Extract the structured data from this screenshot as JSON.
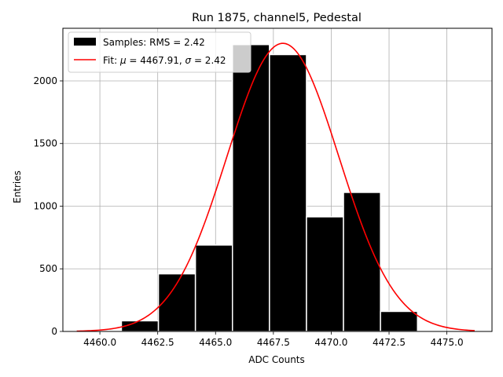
{
  "chart_data": {
    "type": "bar",
    "title": "Run 1875, channel5, Pedestal",
    "xlabel": "ADC Counts",
    "ylabel": "Entries",
    "xlim": [
      4458.4,
      4476.95
    ],
    "ylim": [
      0,
      2420
    ],
    "grid": true,
    "legend_placement": "top-left",
    "x_ticks": [
      4460.0,
      4462.5,
      4465.0,
      4467.5,
      4470.0,
      4472.5,
      4475.0
    ],
    "x_tick_labels": [
      "4460.0",
      "4462.5",
      "4465.0",
      "4467.5",
      "4470.0",
      "4472.5",
      "4475.0"
    ],
    "y_ticks": [
      0,
      500,
      1000,
      1500,
      2000
    ],
    "y_tick_labels": [
      "0",
      "500",
      "1000",
      "1500",
      "2000"
    ],
    "histogram": {
      "name": "Samples: RMS = 2.42",
      "color": "#000000",
      "edge_color": "#ffffff",
      "bins": [
        {
          "lo": 4459.0,
          "hi": 4460.93,
          "count": 5
        },
        {
          "lo": 4460.93,
          "hi": 4462.53,
          "count": 85
        },
        {
          "lo": 4462.53,
          "hi": 4464.13,
          "count": 460
        },
        {
          "lo": 4464.13,
          "hi": 4465.73,
          "count": 690
        },
        {
          "lo": 4465.73,
          "hi": 4467.33,
          "count": 2290
        },
        {
          "lo": 4467.33,
          "hi": 4468.93,
          "count": 2210
        },
        {
          "lo": 4468.93,
          "hi": 4470.53,
          "count": 915
        },
        {
          "lo": 4470.53,
          "hi": 4472.13,
          "count": 1110
        },
        {
          "lo": 4472.13,
          "hi": 4473.73,
          "count": 160
        }
      ]
    },
    "fit": {
      "name_prefix": "Fit: ",
      "mu_symbol": "μ",
      "mid": " = 4467.91, ",
      "sigma_symbol": "σ",
      "tail": " = 2.42",
      "mu": 4467.91,
      "sigma": 2.42,
      "amplitude": 2300,
      "x_range": [
        4459.0,
        4476.2
      ],
      "color": "#ff0000"
    }
  }
}
